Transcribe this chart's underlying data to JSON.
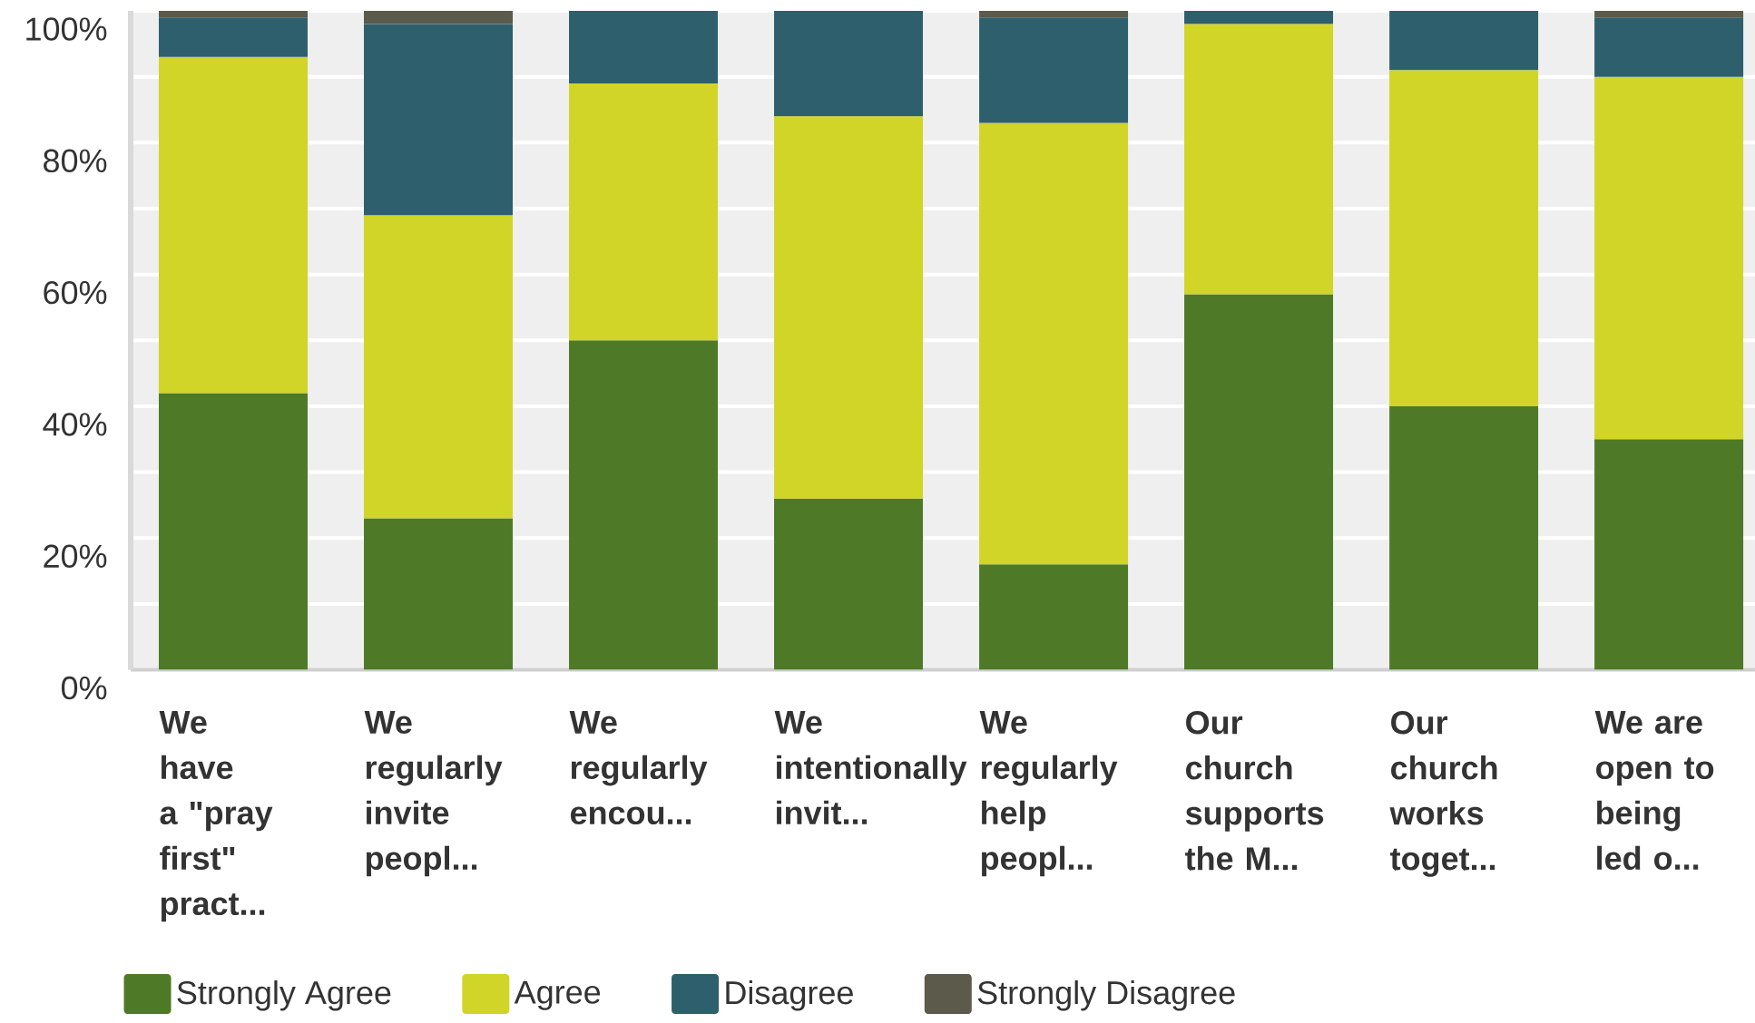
{
  "chart_data": {
    "type": "bar",
    "stacked": true,
    "categories": [
      "We have a \"pray first\" pract...",
      "We regularly invite peopl...",
      "We regularly encou...",
      "We intentionally invit...",
      "We regularly help peopl...",
      "Our church supports the M...",
      "Our church works toget...",
      "We are open to being led o..."
    ],
    "series": [
      {
        "name": "Strongly Agree",
        "color": "#4e7a27",
        "values": [
          42,
          23,
          50,
          26,
          16,
          57,
          40,
          35
        ]
      },
      {
        "name": "Agree",
        "color": "#d0d528",
        "values": [
          51,
          46,
          39,
          58,
          67,
          41,
          51,
          55
        ]
      },
      {
        "name": "Disagree",
        "color": "#2e5f6d",
        "values": [
          6,
          29,
          11,
          16,
          16,
          2,
          9,
          9
        ]
      },
      {
        "name": "Strongly Disagree",
        "color": "#5b5a4b",
        "values": [
          1,
          2,
          null,
          null,
          1,
          null,
          null,
          1
        ]
      }
    ],
    "ylim": [
      0,
      100
    ],
    "yticks": [
      {
        "value": 0,
        "label": "0%"
      },
      {
        "value": 10,
        "label": null
      },
      {
        "value": 20,
        "label": "20%"
      },
      {
        "value": 30,
        "label": null
      },
      {
        "value": 40,
        "label": "40%"
      },
      {
        "value": 50,
        "label": null
      },
      {
        "value": 60,
        "label": "60%"
      },
      {
        "value": 70,
        "label": null
      },
      {
        "value": 80,
        "label": "80%"
      },
      {
        "value": 90,
        "label": null
      },
      {
        "value": 100,
        "label": "100%"
      }
    ],
    "grid": "y",
    "legend": "bottom"
  }
}
